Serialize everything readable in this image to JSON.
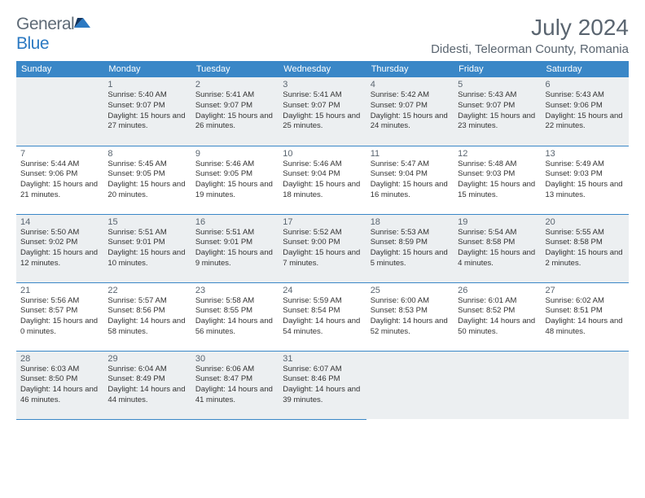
{
  "brand": {
    "part1": "General",
    "part2": "Blue"
  },
  "title": "July 2024",
  "location": "Didesti, Teleorman County, Romania",
  "colors": {
    "header_bg": "#3a87c7",
    "header_text": "#ffffff",
    "alt_row_bg": "#eceff1",
    "border": "#3a87c7",
    "title_color": "#5a6570",
    "text_color": "#333333"
  },
  "weekdays": [
    "Sunday",
    "Monday",
    "Tuesday",
    "Wednesday",
    "Thursday",
    "Friday",
    "Saturday"
  ],
  "days": {
    "1": {
      "sunrise": "5:40 AM",
      "sunset": "9:07 PM",
      "daylight": "15 hours and 27 minutes."
    },
    "2": {
      "sunrise": "5:41 AM",
      "sunset": "9:07 PM",
      "daylight": "15 hours and 26 minutes."
    },
    "3": {
      "sunrise": "5:41 AM",
      "sunset": "9:07 PM",
      "daylight": "15 hours and 25 minutes."
    },
    "4": {
      "sunrise": "5:42 AM",
      "sunset": "9:07 PM",
      "daylight": "15 hours and 24 minutes."
    },
    "5": {
      "sunrise": "5:43 AM",
      "sunset": "9:07 PM",
      "daylight": "15 hours and 23 minutes."
    },
    "6": {
      "sunrise": "5:43 AM",
      "sunset": "9:06 PM",
      "daylight": "15 hours and 22 minutes."
    },
    "7": {
      "sunrise": "5:44 AM",
      "sunset": "9:06 PM",
      "daylight": "15 hours and 21 minutes."
    },
    "8": {
      "sunrise": "5:45 AM",
      "sunset": "9:05 PM",
      "daylight": "15 hours and 20 minutes."
    },
    "9": {
      "sunrise": "5:46 AM",
      "sunset": "9:05 PM",
      "daylight": "15 hours and 19 minutes."
    },
    "10": {
      "sunrise": "5:46 AM",
      "sunset": "9:04 PM",
      "daylight": "15 hours and 18 minutes."
    },
    "11": {
      "sunrise": "5:47 AM",
      "sunset": "9:04 PM",
      "daylight": "15 hours and 16 minutes."
    },
    "12": {
      "sunrise": "5:48 AM",
      "sunset": "9:03 PM",
      "daylight": "15 hours and 15 minutes."
    },
    "13": {
      "sunrise": "5:49 AM",
      "sunset": "9:03 PM",
      "daylight": "15 hours and 13 minutes."
    },
    "14": {
      "sunrise": "5:50 AM",
      "sunset": "9:02 PM",
      "daylight": "15 hours and 12 minutes."
    },
    "15": {
      "sunrise": "5:51 AM",
      "sunset": "9:01 PM",
      "daylight": "15 hours and 10 minutes."
    },
    "16": {
      "sunrise": "5:51 AM",
      "sunset": "9:01 PM",
      "daylight": "15 hours and 9 minutes."
    },
    "17": {
      "sunrise": "5:52 AM",
      "sunset": "9:00 PM",
      "daylight": "15 hours and 7 minutes."
    },
    "18": {
      "sunrise": "5:53 AM",
      "sunset": "8:59 PM",
      "daylight": "15 hours and 5 minutes."
    },
    "19": {
      "sunrise": "5:54 AM",
      "sunset": "8:58 PM",
      "daylight": "15 hours and 4 minutes."
    },
    "20": {
      "sunrise": "5:55 AM",
      "sunset": "8:58 PM",
      "daylight": "15 hours and 2 minutes."
    },
    "21": {
      "sunrise": "5:56 AM",
      "sunset": "8:57 PM",
      "daylight": "15 hours and 0 minutes."
    },
    "22": {
      "sunrise": "5:57 AM",
      "sunset": "8:56 PM",
      "daylight": "14 hours and 58 minutes."
    },
    "23": {
      "sunrise": "5:58 AM",
      "sunset": "8:55 PM",
      "daylight": "14 hours and 56 minutes."
    },
    "24": {
      "sunrise": "5:59 AM",
      "sunset": "8:54 PM",
      "daylight": "14 hours and 54 minutes."
    },
    "25": {
      "sunrise": "6:00 AM",
      "sunset": "8:53 PM",
      "daylight": "14 hours and 52 minutes."
    },
    "26": {
      "sunrise": "6:01 AM",
      "sunset": "8:52 PM",
      "daylight": "14 hours and 50 minutes."
    },
    "27": {
      "sunrise": "6:02 AM",
      "sunset": "8:51 PM",
      "daylight": "14 hours and 48 minutes."
    },
    "28": {
      "sunrise": "6:03 AM",
      "sunset": "8:50 PM",
      "daylight": "14 hours and 46 minutes."
    },
    "29": {
      "sunrise": "6:04 AM",
      "sunset": "8:49 PM",
      "daylight": "14 hours and 44 minutes."
    },
    "30": {
      "sunrise": "6:06 AM",
      "sunset": "8:47 PM",
      "daylight": "14 hours and 41 minutes."
    },
    "31": {
      "sunrise": "6:07 AM",
      "sunset": "8:46 PM",
      "daylight": "14 hours and 39 minutes."
    }
  },
  "layout": {
    "first_weekday_offset": 1,
    "num_days": 31,
    "alt_rows": [
      0,
      2,
      4
    ]
  }
}
